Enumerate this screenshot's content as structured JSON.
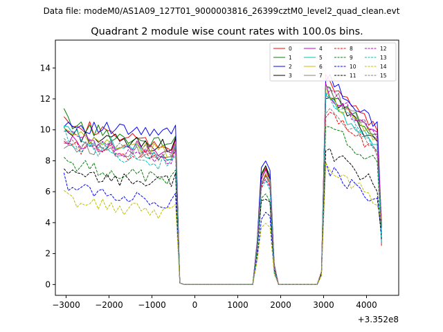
{
  "suptitle": "Data file: modeM0/AS1A09_127T01_9000003816_26399cztM0_level2_quad_clean.evt",
  "chart_data": {
    "type": "line",
    "title": "Quadrant 2 module wise count rates with 100.0s bins.",
    "xlabel": "",
    "ylabel": "",
    "x_offset_label": "+3.352e8",
    "xlim": [
      -3250,
      4750
    ],
    "ylim": [
      -0.7,
      15.8
    ],
    "xticks": [
      -3000,
      -2000,
      -1000,
      0,
      1000,
      2000,
      3000,
      4000
    ],
    "xtick_labels": [
      "−3000",
      "−2000",
      "−1000",
      "0",
      "1000",
      "2000",
      "3000",
      "4000"
    ],
    "yticks": [
      0,
      2,
      4,
      6,
      8,
      10,
      12,
      14
    ],
    "ytick_labels": [
      "0",
      "2",
      "4",
      "6",
      "8",
      "10",
      "12",
      "14"
    ],
    "legend_location": "top-right",
    "segments": [
      {
        "x_start": -3050,
        "x_end": -450,
        "step": 100
      },
      {
        "x_start": 1450,
        "x_end": 1850,
        "step": 100
      },
      {
        "x_start": 2950,
        "x_end": 4350,
        "step": 100
      }
    ],
    "gap_points": [
      -350,
      -250,
      1350,
      1950,
      2050,
      2850
    ],
    "series": [
      {
        "name": "0",
        "color": "#ff0000",
        "dash": "solid",
        "a": 11.3,
        "b": 8.8,
        "c": 12.3
      },
      {
        "name": "1",
        "color": "#008000",
        "dash": "solid",
        "a": 11.0,
        "b": 9.0,
        "c": 11.8
      },
      {
        "name": "2",
        "color": "#0000ff",
        "dash": "solid",
        "a": 10.6,
        "b": 9.7,
        "c": 12.4
      },
      {
        "name": "3",
        "color": "#000000",
        "dash": "solid",
        "a": 10.1,
        "b": 8.9,
        "c": 11.3
      },
      {
        "name": "4",
        "color": "#bf00bf",
        "dash": "solid",
        "a": 9.4,
        "b": 8.7,
        "c": 11.6
      },
      {
        "name": "5",
        "color": "#00bfbf",
        "dash": "solid",
        "a": 10.3,
        "b": 8.3,
        "c": 10.9
      },
      {
        "name": "6",
        "color": "#bfbf00",
        "dash": "solid",
        "a": 10.0,
        "b": 8.6,
        "c": 11.4
      },
      {
        "name": "7",
        "color": "#808080",
        "dash": "solid",
        "a": 9.1,
        "b": 8.5,
        "c": 11.7
      },
      {
        "name": "8",
        "color": "#ff0000",
        "dash": "dashed",
        "a": 9.3,
        "b": 8.2,
        "c": 10.2
      },
      {
        "name": "9",
        "color": "#008000",
        "dash": "dashed",
        "a": 8.2,
        "b": 6.8,
        "c": 9.4
      },
      {
        "name": "10",
        "color": "#0000ff",
        "dash": "dashed",
        "a": 6.8,
        "b": 5.3,
        "c": 6.5
      },
      {
        "name": "11",
        "color": "#000000",
        "dash": "dashed",
        "a": 7.2,
        "b": 6.6,
        "c": 7.7
      },
      {
        "name": "12",
        "color": "#bf00bf",
        "dash": "dashed",
        "a": 10.2,
        "b": 8.1,
        "c": 11.6
      },
      {
        "name": "13",
        "color": "#00bfbf",
        "dash": "dashed",
        "a": 9.8,
        "b": 7.7,
        "c": 11.0
      },
      {
        "name": "14",
        "color": "#bfbf00",
        "dash": "dashed",
        "a": 5.8,
        "b": 4.6,
        "c": 6.6
      },
      {
        "name": "15",
        "color": "#808080",
        "dash": "dashed",
        "a": 9.5,
        "b": 8.4,
        "c": 10.4
      }
    ]
  }
}
